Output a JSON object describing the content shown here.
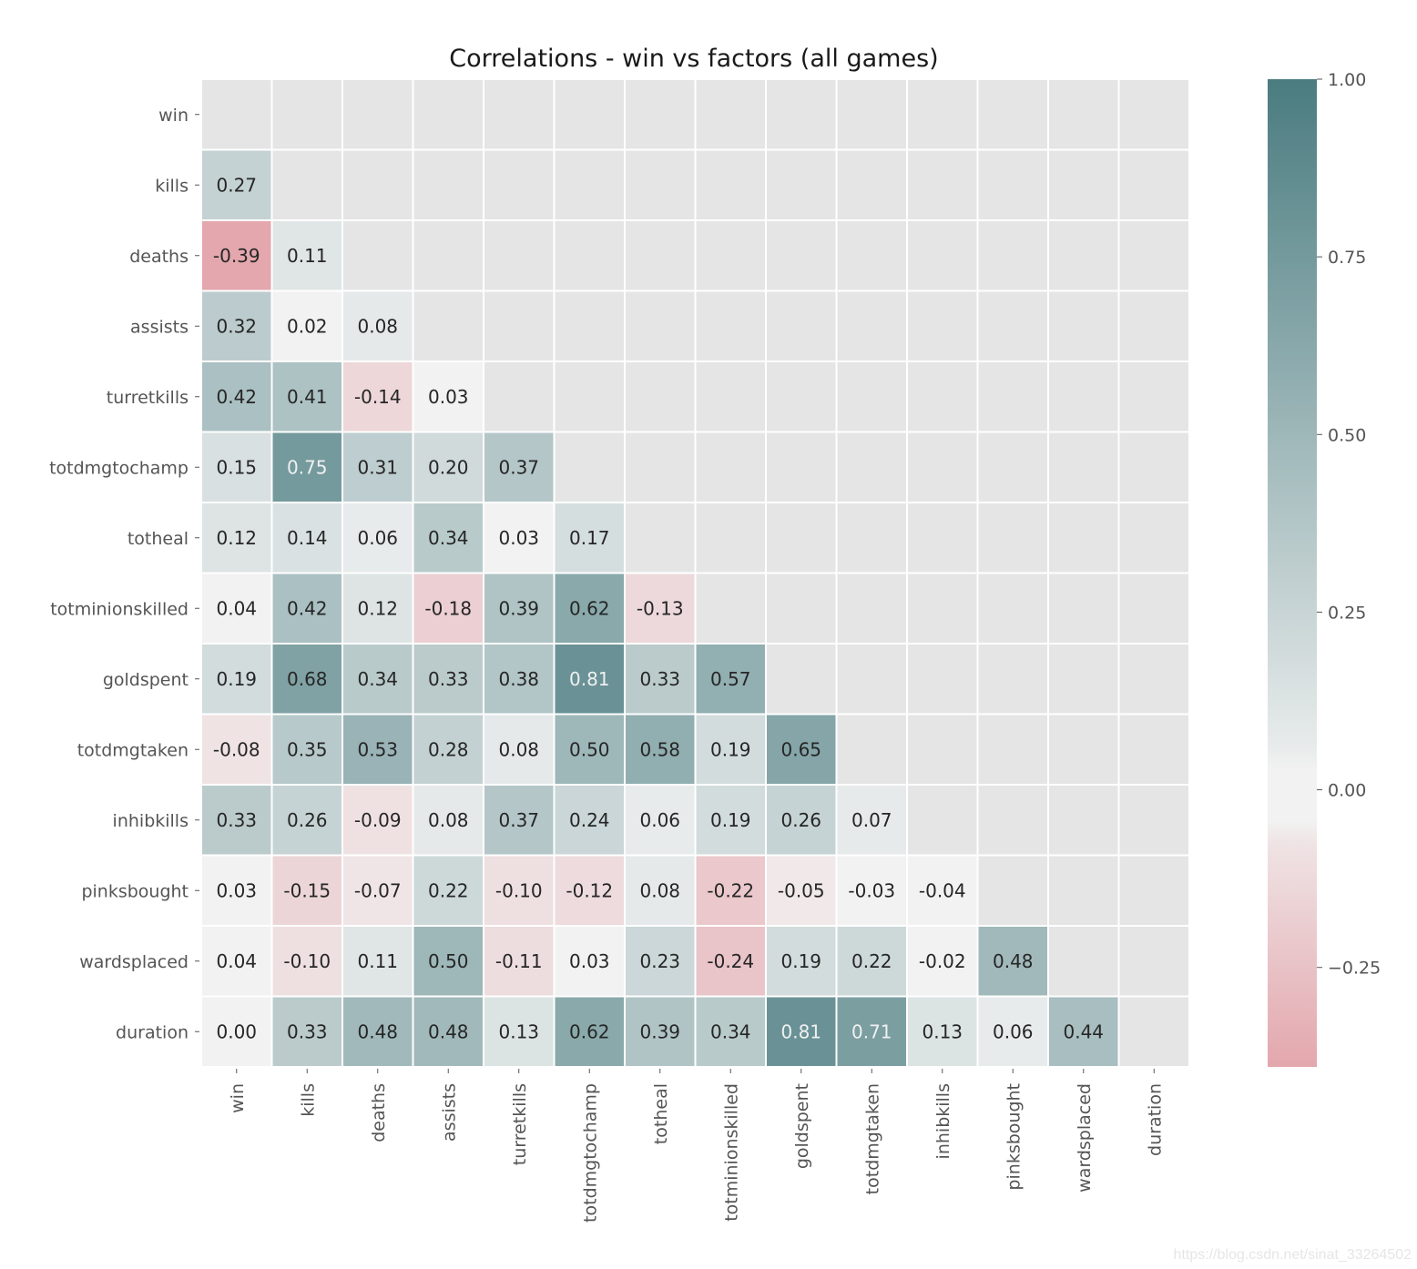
{
  "chart_data": {
    "type": "heatmap",
    "title": "Correlations - win vs factors (all games)",
    "xlabel": "",
    "ylabel": "",
    "variables": [
      "win",
      "kills",
      "deaths",
      "assists",
      "turretkills",
      "totdmgtochamp",
      "totheal",
      "totminionskilled",
      "goldspent",
      "totdmgtaken",
      "inhibkills",
      "pinksbought",
      "wardsplaced",
      "duration"
    ],
    "mask": "upper-triangle-including-diagonal",
    "lower_triangle_values": [
      [],
      [
        0.27
      ],
      [
        -0.39,
        0.11
      ],
      [
        0.32,
        0.02,
        0.08
      ],
      [
        0.42,
        0.41,
        -0.14,
        0.03
      ],
      [
        0.15,
        0.75,
        0.31,
        0.2,
        0.37
      ],
      [
        0.12,
        0.14,
        0.06,
        0.34,
        0.03,
        0.17
      ],
      [
        0.04,
        0.42,
        0.12,
        -0.18,
        0.39,
        0.62,
        -0.13
      ],
      [
        0.19,
        0.68,
        0.34,
        0.33,
        0.38,
        0.81,
        0.33,
        0.57
      ],
      [
        -0.08,
        0.35,
        0.53,
        0.28,
        0.08,
        0.5,
        0.58,
        0.19,
        0.65
      ],
      [
        0.33,
        0.26,
        -0.09,
        0.08,
        0.37,
        0.24,
        0.06,
        0.19,
        0.26,
        0.07
      ],
      [
        0.03,
        -0.15,
        -0.07,
        0.22,
        -0.1,
        -0.12,
        0.08,
        -0.22,
        -0.05,
        -0.03,
        -0.04
      ],
      [
        0.04,
        -0.1,
        0.11,
        0.5,
        -0.11,
        0.03,
        0.23,
        -0.24,
        0.19,
        0.22,
        -0.02,
        0.48
      ],
      [
        0.0,
        0.33,
        0.48,
        0.48,
        0.13,
        0.62,
        0.39,
        0.34,
        0.81,
        0.71,
        0.13,
        0.06,
        0.44
      ]
    ],
    "colorbar": {
      "vmin": -0.39,
      "vmax": 1.0,
      "center": 0.0,
      "ticks": [
        1.0,
        0.75,
        0.5,
        0.25,
        0.0,
        -0.25
      ],
      "tick_labels": [
        "1.00",
        "0.75",
        "0.50",
        "0.25",
        "0.00",
        "−0.25"
      ],
      "placement": "right"
    },
    "colors": {
      "positive_max": "#4a7c80",
      "neutral": "#f2f2f2",
      "negative_max": "#e3a7ad",
      "masked_cell": "#e5e5e5",
      "cell_border": "#ffffff",
      "annotation_dark": "#262626",
      "annotation_light": "#f0f0f0"
    },
    "grid": false,
    "annotations": true
  },
  "watermark": "https://blog.csdn.net/sinat_33264502"
}
